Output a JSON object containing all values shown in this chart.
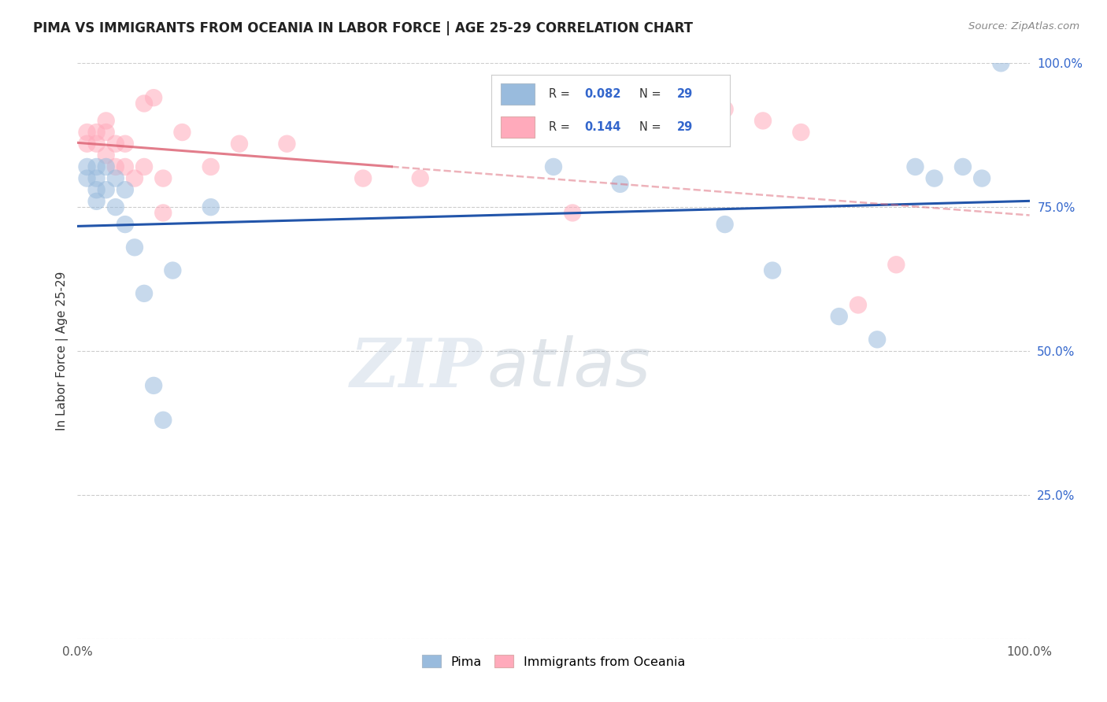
{
  "title": "PIMA VS IMMIGRANTS FROM OCEANIA IN LABOR FORCE | AGE 25-29 CORRELATION CHART",
  "source": "Source: ZipAtlas.com",
  "ylabel": "In Labor Force | Age 25-29",
  "xlim": [
    0.0,
    1.0
  ],
  "ylim": [
    0.0,
    1.0
  ],
  "x_ticks": [
    0.0,
    0.25,
    0.5,
    0.75,
    1.0
  ],
  "x_tick_labels": [
    "0.0%",
    "",
    "",
    "",
    "100.0%"
  ],
  "y_ticks_right": [
    0.0,
    0.25,
    0.5,
    0.75,
    1.0
  ],
  "y_tick_labels_right": [
    "",
    "25.0%",
    "50.0%",
    "75.0%",
    "100.0%"
  ],
  "pima_R": "0.082",
  "pima_N": "29",
  "oceania_R": "0.144",
  "oceania_N": "29",
  "blue_scatter_color": "#99BBDD",
  "pink_scatter_color": "#FFAABB",
  "blue_line_color": "#2255AA",
  "pink_line_color": "#DD6677",
  "legend_text_color": "#3366CC",
  "label_color": "#3366CC",
  "pima_x": [
    0.01,
    0.01,
    0.02,
    0.02,
    0.02,
    0.02,
    0.03,
    0.03,
    0.04,
    0.04,
    0.05,
    0.05,
    0.06,
    0.07,
    0.08,
    0.09,
    0.1,
    0.14,
    0.5,
    0.57,
    0.68,
    0.73,
    0.8,
    0.84,
    0.88,
    0.9,
    0.93,
    0.95,
    0.97
  ],
  "pima_y": [
    0.82,
    0.8,
    0.82,
    0.8,
    0.78,
    0.76,
    0.82,
    0.78,
    0.8,
    0.75,
    0.78,
    0.72,
    0.68,
    0.6,
    0.44,
    0.38,
    0.64,
    0.75,
    0.82,
    0.79,
    0.72,
    0.64,
    0.56,
    0.52,
    0.82,
    0.8,
    0.82,
    0.8,
    1.0
  ],
  "oceania_x": [
    0.01,
    0.01,
    0.02,
    0.02,
    0.03,
    0.03,
    0.03,
    0.04,
    0.04,
    0.05,
    0.05,
    0.06,
    0.07,
    0.07,
    0.08,
    0.09,
    0.09,
    0.11,
    0.14,
    0.17,
    0.22,
    0.3,
    0.36,
    0.52,
    0.68,
    0.72,
    0.76,
    0.82,
    0.86
  ],
  "oceania_y": [
    0.88,
    0.86,
    0.88,
    0.86,
    0.9,
    0.88,
    0.84,
    0.86,
    0.82,
    0.86,
    0.82,
    0.8,
    0.93,
    0.82,
    0.94,
    0.8,
    0.74,
    0.88,
    0.82,
    0.86,
    0.86,
    0.8,
    0.8,
    0.74,
    0.92,
    0.9,
    0.88,
    0.58,
    0.65
  ],
  "watermark_zip": "ZIP",
  "watermark_atlas": "atlas",
  "background_color": "#FFFFFF",
  "grid_color": "#CCCCCC",
  "bottom_legend_labels": [
    "Pima",
    "Immigrants from Oceania"
  ]
}
